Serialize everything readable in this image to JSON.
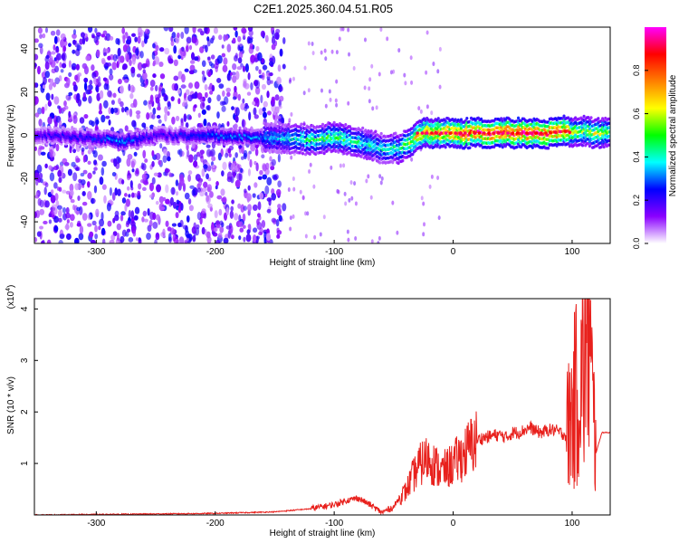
{
  "title": "C2E1.2025.360.04.51.R05",
  "colors": {
    "snr_line": "#e8201c",
    "frame": "#000000",
    "background": "#ffffff"
  },
  "chart_data": [
    {
      "type": "heatmap",
      "panel": "top",
      "xlabel": "Height of straight line (km)",
      "ylabel": "Frequency (Hz)",
      "xlim": [
        -352,
        132
      ],
      "ylim": [
        -50,
        50
      ],
      "xticks": [
        -300,
        -200,
        -100,
        0,
        100
      ],
      "yticks": [
        -40,
        -20,
        0,
        20,
        40
      ],
      "colorbar": {
        "label": "Normalized spectral amplitude",
        "range": [
          0,
          1
        ],
        "ticks": [
          "0.0",
          "0.2",
          "0.4",
          "0.6",
          "0.8"
        ],
        "tick_values": [
          0.0,
          0.2,
          0.4,
          0.6,
          0.8
        ],
        "colormap": [
          "#ffffff",
          "#8a00ff",
          "#0000ff",
          "#00ffff",
          "#00ff00",
          "#ffff00",
          "#ff7f00",
          "#ff0000",
          "#ff00ff"
        ]
      },
      "signal_ridge": {
        "x": [
          -352,
          -300,
          -280,
          -250,
          -200,
          -150,
          -120,
          -100,
          -80,
          -60,
          -45,
          -35,
          -30,
          -20,
          0,
          20,
          50,
          80,
          95,
          100,
          110,
          120,
          132
        ],
        "y": [
          0,
          -1,
          -3,
          0,
          0,
          -1,
          -2,
          -1,
          -3,
          -6,
          -6,
          -3,
          1,
          1,
          1,
          1,
          1,
          1,
          2,
          1,
          2,
          1,
          1
        ],
        "amplitude": [
          0.2,
          0.25,
          0.35,
          0.2,
          0.3,
          0.35,
          0.45,
          0.5,
          0.45,
          0.4,
          0.45,
          0.6,
          0.7,
          0.75,
          0.85,
          0.9,
          0.92,
          0.9,
          0.85,
          0.6,
          0.55,
          0.6,
          0.5
        ]
      }
    },
    {
      "type": "line",
      "panel": "bottom",
      "xlabel": "Height of straight line (km)",
      "ylabel": "SNR (10 * v/v)",
      "multiplier": "(x10",
      "multiplier_exponent": "4",
      "multiplier_close": ")",
      "xlim": [
        -352,
        132
      ],
      "ylim": [
        0,
        4.2
      ],
      "xticks": [
        -300,
        -200,
        -100,
        0,
        100
      ],
      "yticks": [
        1,
        2,
        3,
        4
      ],
      "series": [
        {
          "x": [
            -352,
            -300,
            -250,
            -200,
            -150,
            -120,
            -100,
            -90,
            -80,
            -70,
            -60,
            -50,
            -45,
            -40,
            -35,
            -30,
            -25,
            -20,
            -15,
            -10,
            -5,
            0,
            5,
            10,
            15,
            20,
            25,
            30,
            35,
            40,
            45,
            50,
            55,
            60,
            65,
            70,
            75,
            80,
            85,
            90,
            95,
            100,
            105,
            110,
            113,
            116,
            120,
            125,
            132
          ],
          "y": [
            0.0,
            0.01,
            0.02,
            0.03,
            0.06,
            0.12,
            0.2,
            0.28,
            0.33,
            0.2,
            0.05,
            0.15,
            0.35,
            0.45,
            0.7,
            0.9,
            1.05,
            1.1,
            0.95,
            0.85,
            0.9,
            1.0,
            1.1,
            1.2,
            1.35,
            1.45,
            1.5,
            1.52,
            1.55,
            1.55,
            1.5,
            1.6,
            1.6,
            1.65,
            1.7,
            1.62,
            1.6,
            1.65,
            1.65,
            1.6,
            1.55,
            2.0,
            2.5,
            2.8,
            4.0,
            2.6,
            1.2,
            1.6,
            1.6
          ]
        }
      ]
    }
  ]
}
